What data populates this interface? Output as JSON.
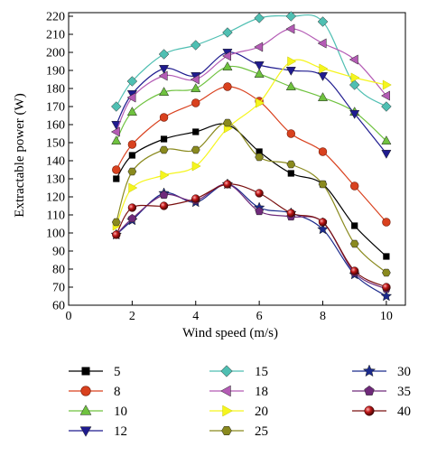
{
  "chart_data": {
    "type": "line",
    "title": "",
    "xlabel": "Wind speed (m/s)",
    "ylabel": "Extractable power (W)",
    "xlim": [
      0,
      10.6
    ],
    "ylim": [
      60,
      222
    ],
    "xticks": [
      0,
      2,
      4,
      6,
      8,
      10
    ],
    "yticks": [
      60,
      70,
      80,
      90,
      100,
      110,
      120,
      130,
      140,
      150,
      160,
      170,
      180,
      190,
      200,
      210,
      220
    ],
    "grid": false,
    "legend_position": "bottom",
    "x": [
      1.5,
      2,
      3,
      4,
      5,
      6,
      7,
      8,
      9,
      10
    ],
    "series": [
      {
        "name": "5",
        "color": "#000000",
        "marker": "square",
        "values": [
          130,
          143,
          152,
          156,
          160,
          145,
          133,
          127,
          104,
          87
        ]
      },
      {
        "name": "8",
        "color": "#d9411e",
        "marker": "circle",
        "values": [
          135,
          149,
          164,
          172,
          181,
          173,
          155,
          145,
          126,
          106
        ]
      },
      {
        "name": "10",
        "color": "#6fc23f",
        "marker": "triangle-up",
        "values": [
          151,
          167,
          178,
          180,
          192,
          188,
          181,
          175,
          167,
          151
        ]
      },
      {
        "name": "12",
        "color": "#1f1b8f",
        "marker": "triangle-down",
        "values": [
          160,
          177,
          191,
          187,
          200,
          193,
          190,
          187,
          166,
          144
        ]
      },
      {
        "name": "15",
        "color": "#4fbfb2",
        "marker": "diamond",
        "values": [
          170,
          184,
          199,
          204,
          211,
          219,
          220,
          217,
          182,
          170
        ]
      },
      {
        "name": "18",
        "color": "#b45bb5",
        "marker": "triangle-left",
        "values": [
          156,
          175,
          187,
          185,
          198,
          203,
          213,
          205,
          196,
          176
        ]
      },
      {
        "name": "20",
        "color": "#f5f51e",
        "marker": "triangle-right",
        "values": [
          104,
          125,
          132,
          137,
          158,
          172,
          195,
          191,
          186,
          182
        ]
      },
      {
        "name": "25",
        "color": "#8a8a1e",
        "marker": "hexagon",
        "values": [
          106,
          134,
          146,
          146,
          161,
          142,
          138,
          127,
          94,
          78
        ]
      },
      {
        "name": "30",
        "color": "#1b2a8c",
        "marker": "star",
        "values": [
          99,
          107,
          122,
          117,
          127,
          114,
          111,
          102,
          77,
          65
        ]
      },
      {
        "name": "35",
        "color": "#6f2a7a",
        "marker": "pentagon",
        "values": [
          99,
          108,
          121,
          118,
          127,
          112,
          109,
          106,
          78,
          69
        ]
      },
      {
        "name": "40",
        "color": "#7a1010",
        "marker": "ball",
        "values": [
          99,
          114,
          115,
          119,
          127,
          122,
          111,
          106,
          79,
          70
        ]
      }
    ]
  }
}
